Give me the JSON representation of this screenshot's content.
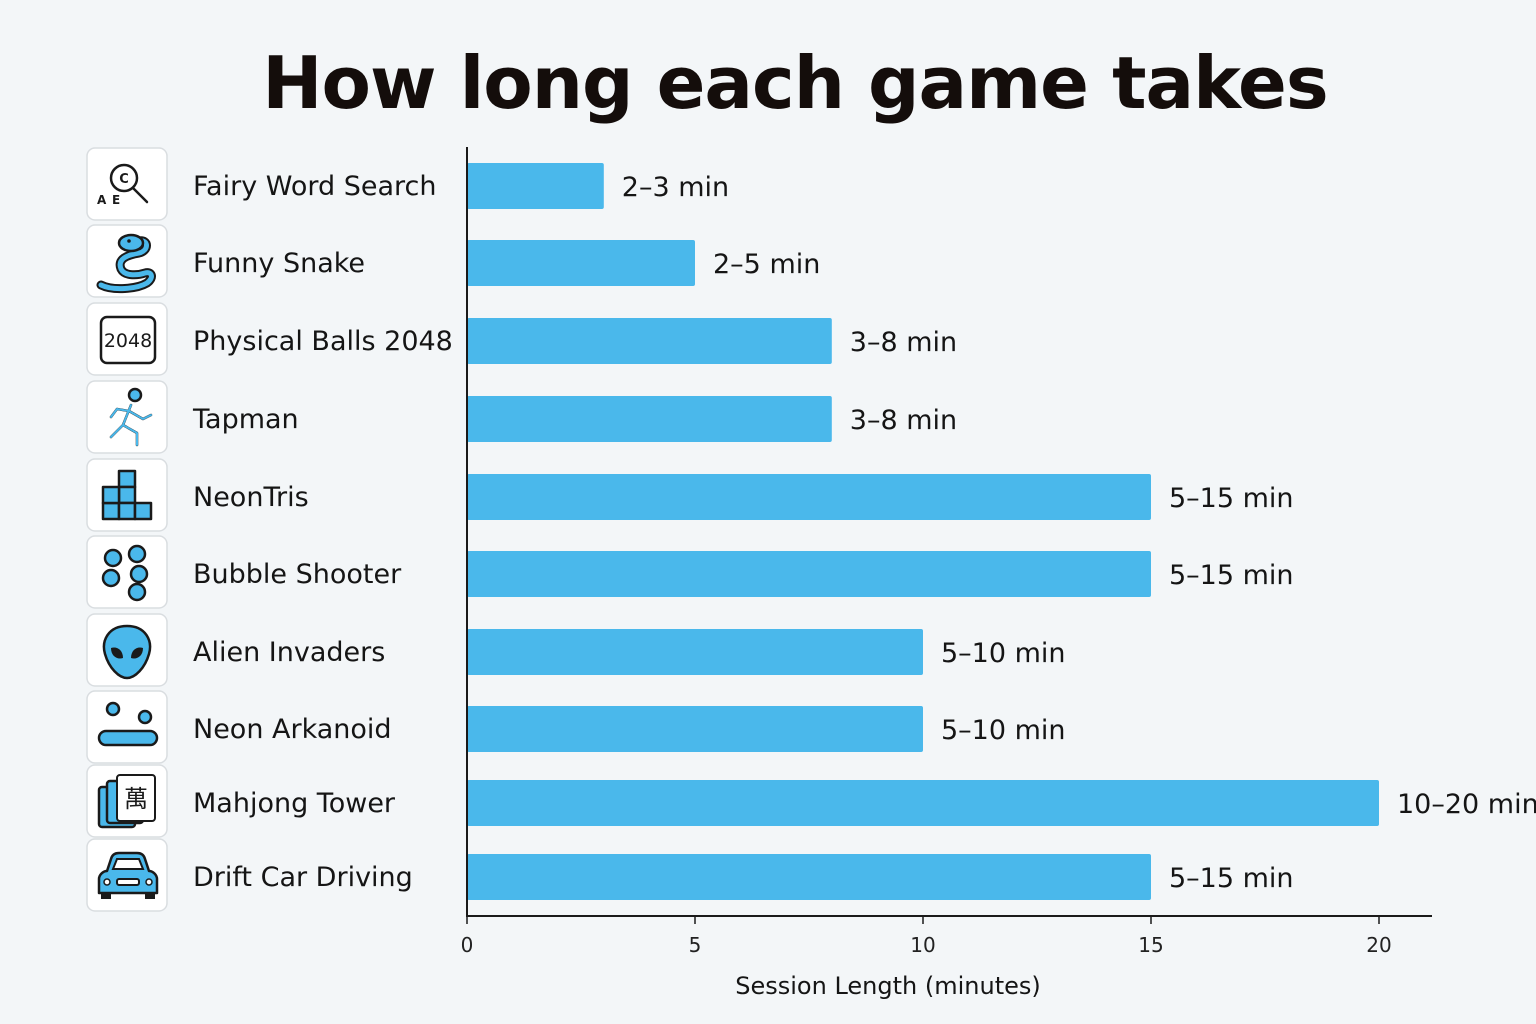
{
  "chart_data": {
    "type": "bar",
    "orientation": "horizontal",
    "title": "How long each game takes",
    "xlabel": "Session Length (minutes)",
    "ylabel": "",
    "xlim": [
      0,
      21
    ],
    "xticks": [
      0,
      5,
      10,
      15,
      20
    ],
    "categories": [
      "Fairy Word Search",
      "Funny Snake",
      "Physical Balls 2048",
      "Tapman",
      "NeonTris",
      "Bubble Shooter",
      "Alien Invaders",
      "Neon Arkanoid",
      "Mahjong Tower",
      "Drift Car Driving"
    ],
    "icons": [
      "magnifier-letters-icon",
      "snake-icon",
      "tile-2048-icon",
      "running-man-icon",
      "tetromino-blocks-icon",
      "bubbles-icon",
      "alien-head-icon",
      "arkanoid-paddle-icon",
      "mahjong-tiles-icon",
      "car-icon"
    ],
    "icon_texts": {
      "magnifier_letters": [
        "C",
        "A",
        "E"
      ],
      "tile_2048": "2048",
      "mahjong_tile": "萬"
    },
    "values": [
      3,
      5,
      8,
      8,
      15,
      15,
      10,
      10,
      20,
      15
    ],
    "value_labels": [
      "2–3 min",
      "2–5 min",
      "3–8 min",
      "3–8 min",
      "5–15 min",
      "5–15 min",
      "5–10 min",
      "5–10 min",
      "10–20 min",
      "5–15 min"
    ],
    "bar_color": "#4ab8eb",
    "grid": false
  }
}
